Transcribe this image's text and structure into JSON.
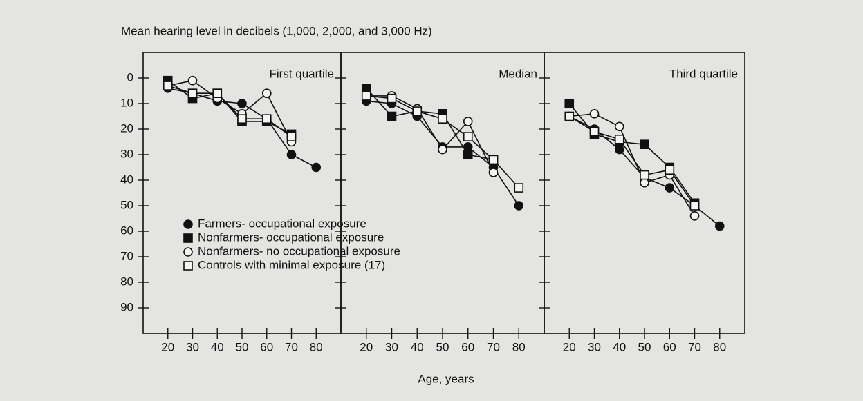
{
  "title": "Mean hearing level in decibels (1,000, 2,000, and 3,000 Hz)",
  "x_label": "Age, years",
  "chart_data": [
    {
      "type": "line",
      "title": "First quartile",
      "y_inverted": true,
      "x": [
        20,
        30,
        40,
        50,
        60,
        70,
        80
      ],
      "xlim": [
        10,
        90
      ],
      "xticks": [
        20,
        30,
        40,
        50,
        60,
        70,
        80
      ],
      "ylim": [
        -10,
        100
      ],
      "yticks": [
        0,
        10,
        20,
        30,
        40,
        50,
        60,
        70,
        80,
        90
      ],
      "series": [
        {
          "name": "Farmers- occupational exposure",
          "marker": "circle-filled",
          "color": "#111111",
          "values": [
            4,
            6,
            9,
            10,
            16,
            30,
            35
          ]
        },
        {
          "name": "Nonfarmers- occupational exposure",
          "marker": "square-filled",
          "color": "#111111",
          "values": [
            1,
            8,
            6,
            17,
            17,
            22,
            null
          ]
        },
        {
          "name": "Nonfarmers- no occupational exposure",
          "marker": "circle-open",
          "color": "#111111",
          "values": [
            3,
            1,
            8,
            14,
            6,
            25,
            null
          ]
        },
        {
          "name": "Controls with minimal exposure (17)",
          "marker": "square-open",
          "color": "#111111",
          "values": [
            3,
            6,
            6,
            16,
            16,
            23,
            null
          ]
        }
      ]
    },
    {
      "type": "line",
      "title": "Median",
      "y_inverted": true,
      "x": [
        20,
        30,
        40,
        50,
        60,
        70,
        80
      ],
      "xlim": [
        10,
        90
      ],
      "xticks": [
        20,
        30,
        40,
        50,
        60,
        70,
        80
      ],
      "ylim": [
        -10,
        100
      ],
      "yticks": [
        0,
        10,
        20,
        30,
        40,
        50,
        60,
        70,
        80,
        90
      ],
      "series": [
        {
          "marker": "circle-filled",
          "color": "#111111",
          "values": [
            9,
            10,
            15,
            27,
            27,
            35,
            50
          ]
        },
        {
          "marker": "square-filled",
          "color": "#111111",
          "values": [
            4,
            15,
            13,
            14,
            30,
            32,
            null
          ]
        },
        {
          "marker": "circle-open",
          "color": "#111111",
          "values": [
            7,
            7,
            12,
            28,
            17,
            37,
            null
          ]
        },
        {
          "marker": "square-open",
          "color": "#111111",
          "values": [
            7,
            8,
            13,
            16,
            23,
            32,
            43
          ]
        }
      ]
    },
    {
      "type": "line",
      "title": "Third quartile",
      "y_inverted": true,
      "x": [
        20,
        30,
        40,
        50,
        60,
        70,
        80
      ],
      "xlim": [
        10,
        90
      ],
      "xticks": [
        20,
        30,
        40,
        50,
        60,
        70,
        80
      ],
      "ylim": [
        -10,
        100
      ],
      "yticks": [
        0,
        10,
        20,
        30,
        40,
        50,
        60,
        70,
        80,
        90
      ],
      "series": [
        {
          "marker": "circle-filled",
          "color": "#111111",
          "values": [
            15,
            20,
            28,
            39,
            43,
            50,
            58
          ]
        },
        {
          "marker": "square-filled",
          "color": "#111111",
          "values": [
            10,
            22,
            25,
            26,
            35,
            49,
            null
          ]
        },
        {
          "marker": "circle-open",
          "color": "#111111",
          "values": [
            15,
            14,
            19,
            41,
            38,
            54,
            null
          ]
        },
        {
          "marker": "square-open",
          "color": "#111111",
          "values": [
            15,
            21,
            24,
            38,
            36,
            50,
            null
          ]
        }
      ]
    }
  ]
}
